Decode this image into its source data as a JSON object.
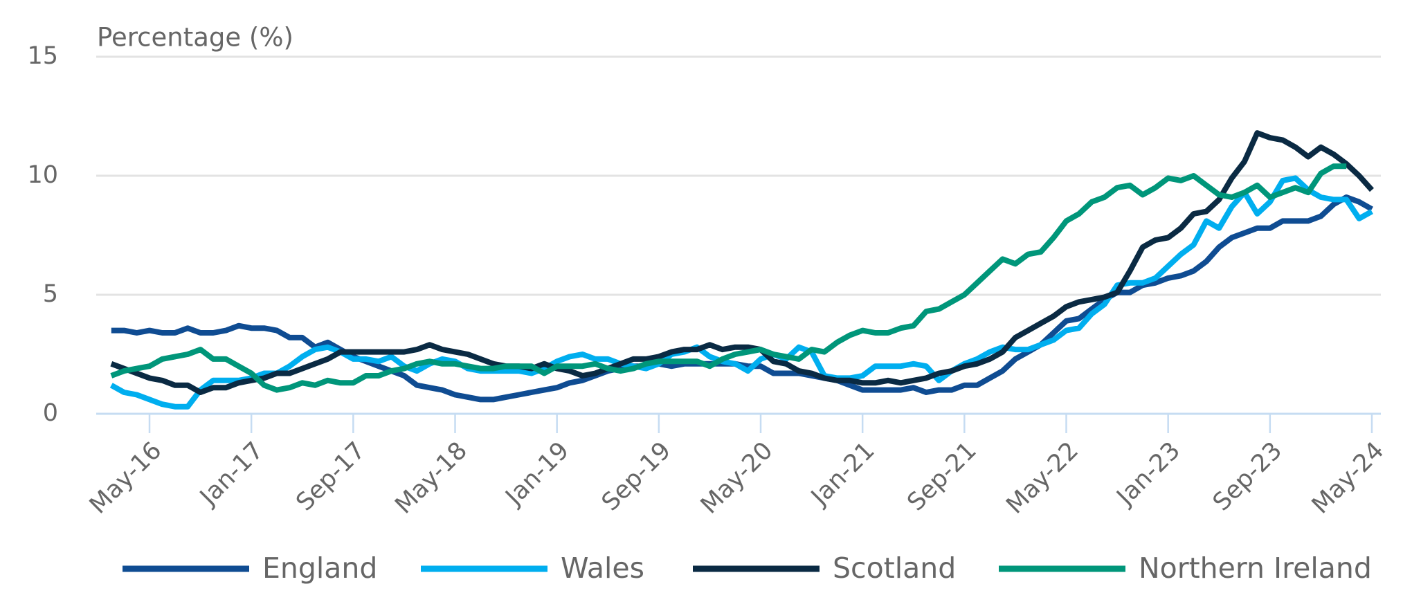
{
  "chart_data": {
    "type": "line",
    "title": "Percentage (%)",
    "categories": [
      null,
      null,
      null,
      "May-16",
      null,
      null,
      null,
      null,
      null,
      null,
      null,
      "Jan-17",
      null,
      null,
      null,
      null,
      null,
      null,
      null,
      "Sep-17",
      null,
      null,
      null,
      null,
      null,
      null,
      null,
      "May-18",
      null,
      null,
      null,
      null,
      null,
      null,
      null,
      "Jan-19",
      null,
      null,
      null,
      null,
      null,
      null,
      null,
      "Sep-19",
      null,
      null,
      null,
      null,
      null,
      null,
      null,
      "May-20",
      null,
      null,
      null,
      null,
      null,
      null,
      null,
      "Jan-21",
      null,
      null,
      null,
      null,
      null,
      null,
      null,
      "Sep-21",
      null,
      null,
      null,
      null,
      null,
      null,
      null,
      "May-22",
      null,
      null,
      null,
      null,
      null,
      null,
      null,
      "Jan-23",
      null,
      null,
      null,
      null,
      null,
      null,
      null,
      "Sep-23",
      null,
      null,
      null,
      null,
      null,
      null,
      null,
      "May-24"
    ],
    "series": [
      {
        "name": "England",
        "color": "#0f4c92",
        "values": [
          3.5,
          3.5,
          3.4,
          3.5,
          3.4,
          3.4,
          3.6,
          3.4,
          3.4,
          3.5,
          3.7,
          3.6,
          3.6,
          3.5,
          3.2,
          3.2,
          2.8,
          3.0,
          2.7,
          2.4,
          2.2,
          2.0,
          1.8,
          1.6,
          1.2,
          1.1,
          1.0,
          0.8,
          0.7,
          0.6,
          0.6,
          0.7,
          0.8,
          0.9,
          1.0,
          1.1,
          1.3,
          1.4,
          1.6,
          1.8,
          1.9,
          2.0,
          2.0,
          2.1,
          2.0,
          2.1,
          2.1,
          2.1,
          2.1,
          2.1,
          2.0,
          2.0,
          1.7,
          1.7,
          1.7,
          1.6,
          1.5,
          1.4,
          1.2,
          1.0,
          1.0,
          1.0,
          1.0,
          1.1,
          0.9,
          1.0,
          1.0,
          1.2,
          1.2,
          1.5,
          1.8,
          2.3,
          2.6,
          2.9,
          3.4,
          3.9,
          4.0,
          4.4,
          4.8,
          5.1,
          5.1,
          5.4,
          5.5,
          5.7,
          5.8,
          6.0,
          6.4,
          7.0,
          7.4,
          7.6,
          7.8,
          7.8,
          8.1,
          8.1,
          8.1,
          8.3,
          8.8,
          9.1,
          8.9,
          8.6
        ]
      },
      {
        "name": "Wales",
        "color": "#00aeef",
        "values": [
          1.2,
          0.9,
          0.8,
          0.6,
          0.4,
          0.3,
          0.3,
          1.0,
          1.4,
          1.4,
          1.4,
          1.5,
          1.7,
          1.7,
          2.0,
          2.4,
          2.7,
          2.8,
          2.6,
          2.3,
          2.3,
          2.2,
          2.4,
          2.0,
          1.8,
          2.1,
          2.3,
          2.2,
          1.9,
          1.8,
          1.8,
          1.8,
          1.8,
          1.7,
          1.9,
          2.2,
          2.4,
          2.5,
          2.3,
          2.3,
          2.1,
          2.0,
          1.9,
          2.1,
          2.5,
          2.6,
          2.8,
          2.4,
          2.2,
          2.1,
          1.8,
          2.3,
          2.5,
          2.3,
          2.8,
          2.6,
          1.6,
          1.5,
          1.5,
          1.6,
          2.0,
          2.0,
          2.0,
          2.1,
          2.0,
          1.4,
          1.8,
          2.1,
          2.3,
          2.6,
          2.8,
          2.7,
          2.7,
          2.9,
          3.1,
          3.5,
          3.6,
          4.2,
          4.6,
          5.4,
          5.5,
          5.5,
          5.7,
          6.2,
          6.7,
          7.1,
          8.1,
          7.8,
          8.7,
          9.3,
          8.4,
          8.9,
          9.8,
          9.9,
          9.4,
          9.1,
          9.0,
          9.0,
          8.2,
          8.5
        ]
      },
      {
        "name": "Scotland",
        "color": "#0a2a43",
        "values": [
          2.1,
          1.9,
          1.7,
          1.5,
          1.4,
          1.2,
          1.2,
          0.9,
          1.1,
          1.1,
          1.3,
          1.4,
          1.5,
          1.7,
          1.7,
          1.9,
          2.1,
          2.3,
          2.6,
          2.6,
          2.6,
          2.6,
          2.6,
          2.6,
          2.7,
          2.9,
          2.7,
          2.6,
          2.5,
          2.3,
          2.1,
          2.0,
          2.0,
          1.9,
          2.1,
          1.9,
          1.8,
          1.6,
          1.7,
          1.9,
          2.1,
          2.3,
          2.3,
          2.4,
          2.6,
          2.7,
          2.7,
          2.9,
          2.7,
          2.8,
          2.8,
          2.7,
          2.2,
          2.1,
          1.8,
          1.7,
          1.5,
          1.4,
          1.4,
          1.3,
          1.3,
          1.4,
          1.3,
          1.4,
          1.5,
          1.7,
          1.8,
          2.0,
          2.1,
          2.3,
          2.6,
          3.2,
          3.5,
          3.8,
          4.1,
          4.5,
          4.7,
          4.8,
          4.9,
          5.1,
          6.0,
          7.0,
          7.3,
          7.4,
          7.8,
          8.4,
          8.5,
          9.0,
          9.9,
          10.6,
          11.8,
          11.6,
          11.5,
          11.2,
          10.8,
          11.2,
          10.9,
          10.5,
          10.0,
          9.4
        ]
      },
      {
        "name": "Northern Ireland",
        "color": "#00967a",
        "values": [
          1.6,
          1.8,
          1.9,
          2.0,
          2.3,
          2.4,
          2.5,
          2.7,
          2.3,
          2.3,
          2.0,
          1.7,
          1.2,
          1.0,
          1.1,
          1.3,
          1.2,
          1.4,
          1.3,
          1.3,
          1.6,
          1.6,
          1.8,
          1.9,
          2.1,
          2.2,
          2.1,
          2.1,
          2.0,
          1.9,
          1.9,
          2.0,
          2.0,
          2.0,
          1.7,
          2.0,
          2.0,
          2.0,
          2.1,
          1.9,
          1.8,
          1.9,
          2.1,
          2.2,
          2.2,
          2.2,
          2.2,
          2.0,
          2.3,
          2.5,
          2.6,
          2.7,
          2.5,
          2.4,
          2.3,
          2.7,
          2.6,
          3.0,
          3.3,
          3.5,
          3.4,
          3.4,
          3.6,
          3.7,
          4.3,
          4.4,
          4.7,
          5.0,
          5.5,
          6.0,
          6.5,
          6.3,
          6.7,
          6.8,
          7.4,
          8.1,
          8.4,
          8.9,
          9.1,
          9.5,
          9.6,
          9.2,
          9.5,
          9.9,
          9.8,
          10.0,
          9.6,
          9.2,
          9.1,
          9.3,
          9.6,
          9.1,
          9.3,
          9.5,
          9.3,
          10.1,
          10.4,
          10.4,
          null,
          null
        ]
      }
    ],
    "ylim": [
      0,
      15
    ],
    "yticks": [
      0,
      5,
      10,
      15
    ],
    "grid": true
  }
}
